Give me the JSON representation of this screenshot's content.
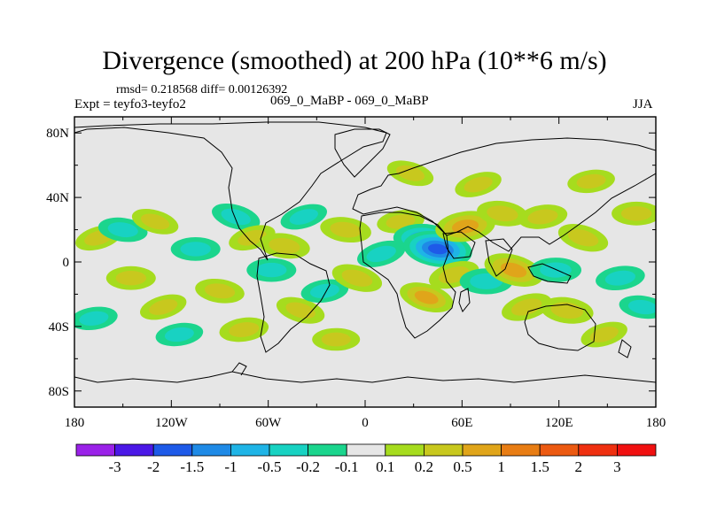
{
  "chart_data": {
    "type": "heatmap",
    "title": "Divergence (smoothed) at 200 hPa (10**6 m/s)",
    "stats_text": "rmsd= 0.218568  diff= 0.00126392",
    "left_label": "Expt = teyfo3-teyfo2",
    "center_label": "069_0_MaBP - 069_0_MaBP",
    "right_label": "JJA",
    "x_ticks": [
      "180",
      "120W",
      "60W",
      "0",
      "60E",
      "120E",
      "180"
    ],
    "x_tick_values": [
      -180,
      -120,
      -60,
      0,
      60,
      120,
      180
    ],
    "y_ticks": [
      "80N",
      "40N",
      "0",
      "40S",
      "80S"
    ],
    "y_tick_values": [
      80,
      40,
      0,
      -40,
      -80
    ],
    "xlim": [
      -180,
      180
    ],
    "ylim": [
      -90,
      90
    ],
    "colorbar_labels": [
      "-3",
      "-2",
      "-1.5",
      "-1",
      "-0.5",
      "-0.2",
      "-0.1",
      "0.1",
      "0.2",
      "0.5",
      "1",
      "1.5",
      "2",
      "3"
    ],
    "colorbar_colors": [
      "#9a22e8",
      "#4b18e6",
      "#1e5ae8",
      "#1f8ae6",
      "#1fb4e6",
      "#18d2c2",
      "#1bd58d",
      "#e6e6e6",
      "#a6dc1e",
      "#c8c81e",
      "#e0a51a",
      "#e87d14",
      "#ec5a12",
      "#ef3010",
      "#f01010"
    ],
    "background_color": "#e6e6e6",
    "features": [
      {
        "lon": -165,
        "lat": 15,
        "v": 0.3
      },
      {
        "lon": -168,
        "lat": -35,
        "v": -0.3
      },
      {
        "lon": -145,
        "lat": -10,
        "v": 0.4
      },
      {
        "lon": -150,
        "lat": 20,
        "v": -0.4
      },
      {
        "lon": -130,
        "lat": 25,
        "v": 0.3
      },
      {
        "lon": -125,
        "lat": -28,
        "v": 0.3
      },
      {
        "lon": -115,
        "lat": -45,
        "v": -0.3
      },
      {
        "lon": -105,
        "lat": 8,
        "v": -0.4
      },
      {
        "lon": -90,
        "lat": -18,
        "v": 0.4
      },
      {
        "lon": -80,
        "lat": 28,
        "v": -0.4
      },
      {
        "lon": -70,
        "lat": 15,
        "v": 0.3
      },
      {
        "lon": -75,
        "lat": -42,
        "v": 0.4
      },
      {
        "lon": -58,
        "lat": -5,
        "v": -0.4
      },
      {
        "lon": -50,
        "lat": 10,
        "v": 0.5
      },
      {
        "lon": -40,
        "lat": -30,
        "v": 0.4
      },
      {
        "lon": -38,
        "lat": 28,
        "v": -0.3
      },
      {
        "lon": -25,
        "lat": -18,
        "v": -0.3
      },
      {
        "lon": -18,
        "lat": -48,
        "v": 0.3
      },
      {
        "lon": -12,
        "lat": 20,
        "v": 0.5
      },
      {
        "lon": -5,
        "lat": -10,
        "v": 0.5
      },
      {
        "lon": 10,
        "lat": 5,
        "v": -0.4
      },
      {
        "lon": 22,
        "lat": 25,
        "v": 0.3
      },
      {
        "lon": 35,
        "lat": 15,
        "v": -0.8
      },
      {
        "lon": 45,
        "lat": 8,
        "v": -1.8
      },
      {
        "lon": 38,
        "lat": -22,
        "v": 0.7
      },
      {
        "lon": 55,
        "lat": -8,
        "v": 0.5
      },
      {
        "lon": 62,
        "lat": 22,
        "v": 1.0
      },
      {
        "lon": 75,
        "lat": -12,
        "v": -0.6
      },
      {
        "lon": 85,
        "lat": 30,
        "v": 0.5
      },
      {
        "lon": 92,
        "lat": -5,
        "v": 1.0
      },
      {
        "lon": 100,
        "lat": -28,
        "v": 0.5
      },
      {
        "lon": 110,
        "lat": 28,
        "v": 0.4
      },
      {
        "lon": 118,
        "lat": -5,
        "v": -0.5
      },
      {
        "lon": 125,
        "lat": -30,
        "v": 0.6
      },
      {
        "lon": 135,
        "lat": 15,
        "v": 0.5
      },
      {
        "lon": 148,
        "lat": -45,
        "v": 0.3
      },
      {
        "lon": 158,
        "lat": -10,
        "v": -0.4
      },
      {
        "lon": 168,
        "lat": 30,
        "v": 0.4
      },
      {
        "lon": 172,
        "lat": -28,
        "v": -0.3
      },
      {
        "lon": 28,
        "lat": 55,
        "v": 0.3
      },
      {
        "lon": 70,
        "lat": 48,
        "v": 0.3
      },
      {
        "lon": 140,
        "lat": 50,
        "v": 0.3
      }
    ]
  }
}
